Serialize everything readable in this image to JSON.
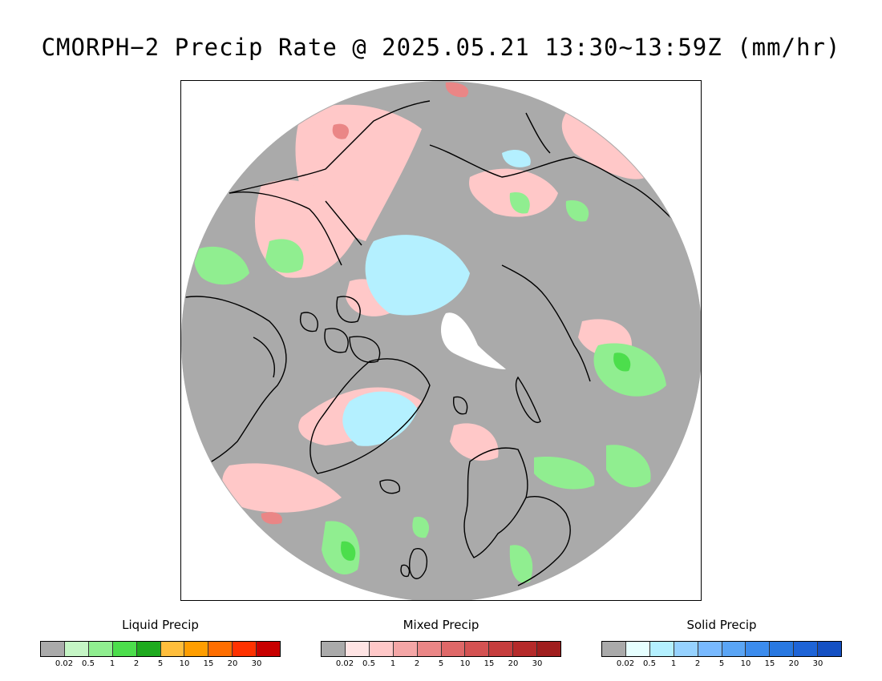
{
  "title": "CMORPH−2 Precip Rate @ 2025.05.21 13:30~13:59Z (mm/hr)",
  "map": {
    "projection": "north-polar-stereographic",
    "background_color": "#aaaaaa",
    "coastline_color": "#000000"
  },
  "legends": [
    {
      "title": "Liquid Precip",
      "colors": [
        "#aaaaaa",
        "#c5f5c5",
        "#90ee90",
        "#4cde4c",
        "#1eaa1e",
        "#ffbe3c",
        "#ff9e00",
        "#ff6e00",
        "#ff3200",
        "#c80000"
      ],
      "ticks": [
        "0.02",
        "0.5",
        "1",
        "2",
        "5",
        "10",
        "15",
        "20",
        "30"
      ]
    },
    {
      "title": "Mixed Precip",
      "colors": [
        "#aaaaaa",
        "#ffe4e4",
        "#ffc8c8",
        "#f4a6a6",
        "#ea8686",
        "#df6868",
        "#d45252",
        "#c63d3d",
        "#b52a2a",
        "#a01e1e"
      ],
      "ticks": [
        "0.02",
        "0.5",
        "1",
        "2",
        "5",
        "10",
        "15",
        "20",
        "30"
      ]
    },
    {
      "title": "Solid Precip",
      "colors": [
        "#aaaaaa",
        "#e6ffff",
        "#b4f0ff",
        "#96d2ff",
        "#78b9ff",
        "#5aa5f5",
        "#3c8ced",
        "#2878e1",
        "#1e64d7",
        "#1450c3"
      ],
      "ticks": [
        "0.02",
        "0.5",
        "1",
        "2",
        "5",
        "10",
        "15",
        "20",
        "30"
      ]
    }
  ]
}
